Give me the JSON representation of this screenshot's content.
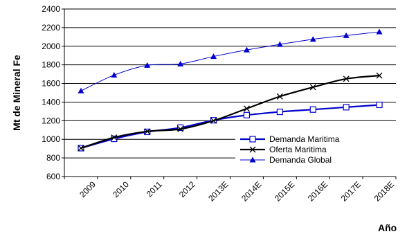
{
  "chart_data": {
    "type": "line",
    "title": "",
    "xlabel": "Año",
    "ylabel": "Mt de Mineral Fe",
    "categories": [
      "2009",
      "2010",
      "2011",
      "2012",
      "2013E",
      "2014E",
      "2015E",
      "2016E",
      "2017E",
      "2018E"
    ],
    "ylim": [
      600,
      2400
    ],
    "yticks": [
      600,
      800,
      1000,
      1200,
      1400,
      1600,
      1800,
      2000,
      2200,
      2400
    ],
    "grid": "horizontal",
    "legend_position": "bottom-right",
    "series": [
      {
        "name": "Demanda Maritima",
        "color": "#0000cc",
        "marker": "square-open",
        "values": [
          905,
          1005,
          1080,
          1125,
          1205,
          1260,
          1295,
          1320,
          1345,
          1370
        ]
      },
      {
        "name": "Oferta Maritima",
        "color": "#000000",
        "marker": "x",
        "values": [
          905,
          1020,
          1085,
          1110,
          1200,
          1330,
          1460,
          1560,
          1650,
          1685
        ]
      },
      {
        "name": "Demanda Global",
        "color": "#0000cc",
        "marker": "triangle-filled",
        "values": [
          1520,
          1690,
          1795,
          1810,
          1890,
          1960,
          2020,
          2075,
          2115,
          2155
        ]
      }
    ]
  }
}
